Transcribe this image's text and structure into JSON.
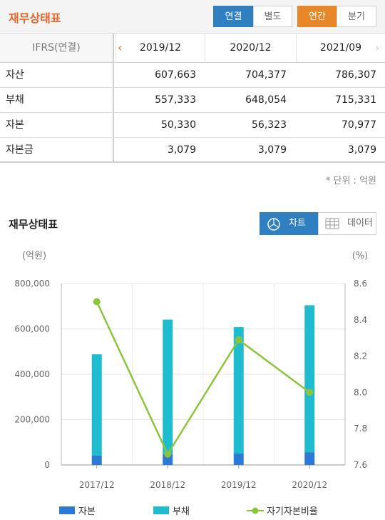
{
  "header": {
    "title": "재무상태표",
    "buttons": {
      "consolidated": "연결",
      "separate": "별도",
      "annual": "연간",
      "quarterly": "분기"
    }
  },
  "table": {
    "header_label": "IFRS(연결)",
    "columns": [
      "2019/12",
      "2020/12",
      "2021/09"
    ],
    "rows": [
      {
        "label": "자산",
        "values": [
          "607,663",
          "704,377",
          "786,307"
        ]
      },
      {
        "label": "부채",
        "values": [
          "557,333",
          "648,054",
          "715,331"
        ]
      },
      {
        "label": "자본",
        "values": [
          "50,330",
          "56,323",
          "70,977"
        ]
      },
      {
        "label": "자본금",
        "values": [
          "3,079",
          "3,079",
          "3,079"
        ]
      }
    ]
  },
  "unit_note": "* 단위 : 억원",
  "chart_section": {
    "title": "재무상태표",
    "toggle_chart": "차트",
    "toggle_data": "데이터",
    "icons": {
      "chart": "pie-chart-icon",
      "data": "table-grid-icon"
    }
  },
  "chart_data": {
    "type": "bar",
    "stacked": true,
    "categories": [
      "2017/12",
      "2018/12",
      "2019/12",
      "2020/12"
    ],
    "y_left_label": "(억원)",
    "y_right_label": "(%)",
    "y_left_ticks": [
      "800,000",
      "600,000",
      "400,000",
      "200,000",
      "0"
    ],
    "y_right_ticks": [
      "8.6",
      "8.4",
      "8.2",
      "8.0",
      "7.8",
      "7.6"
    ],
    "y_left_range": [
      0,
      800000
    ],
    "y_right_range": [
      7.6,
      8.6
    ],
    "series": [
      {
        "name": "자본",
        "type": "bar",
        "color": "#2b7bd6",
        "values": [
          41000,
          48000,
          50330,
          56323
        ]
      },
      {
        "name": "부채",
        "type": "bar",
        "color": "#1fbccf",
        "values": [
          447000,
          593000,
          557333,
          648054
        ]
      },
      {
        "name": "자기자본비율",
        "type": "line",
        "axis": "right",
        "color": "#8cc43c",
        "values": [
          8.5,
          7.66,
          8.29,
          8.0
        ]
      }
    ],
    "grid": true,
    "legend": "bottom"
  },
  "colors": {
    "accent_orange": "#e8662a",
    "active_blue": "#2f7fc1",
    "prev_arrow": "#e8662a",
    "next_arrow": "#cccccc"
  }
}
